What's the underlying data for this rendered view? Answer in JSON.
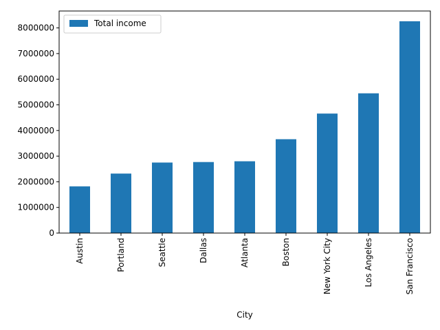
{
  "chart_data": {
    "type": "bar",
    "xlabel": "City",
    "ylabel": "",
    "categories": [
      "Austin",
      "Portland",
      "Seattle",
      "Dallas",
      "Atlanta",
      "Boston",
      "New York City",
      "Los Angeles",
      "San Francisco"
    ],
    "series": [
      {
        "name": "Total income",
        "color": "#1f77b4",
        "values": [
          1820000,
          2320000,
          2750000,
          2770000,
          2800000,
          3660000,
          4660000,
          5450000,
          8260000
        ]
      }
    ],
    "ylim": [
      0,
      8660000
    ],
    "yticks": [
      0,
      1000000,
      2000000,
      3000000,
      4000000,
      5000000,
      6000000,
      7000000,
      8000000
    ],
    "ytick_labels": [
      "0",
      "1000000",
      "2000000",
      "3000000",
      "4000000",
      "5000000",
      "6000000",
      "7000000",
      "8000000"
    ],
    "grid": false,
    "legend": "top-left"
  }
}
